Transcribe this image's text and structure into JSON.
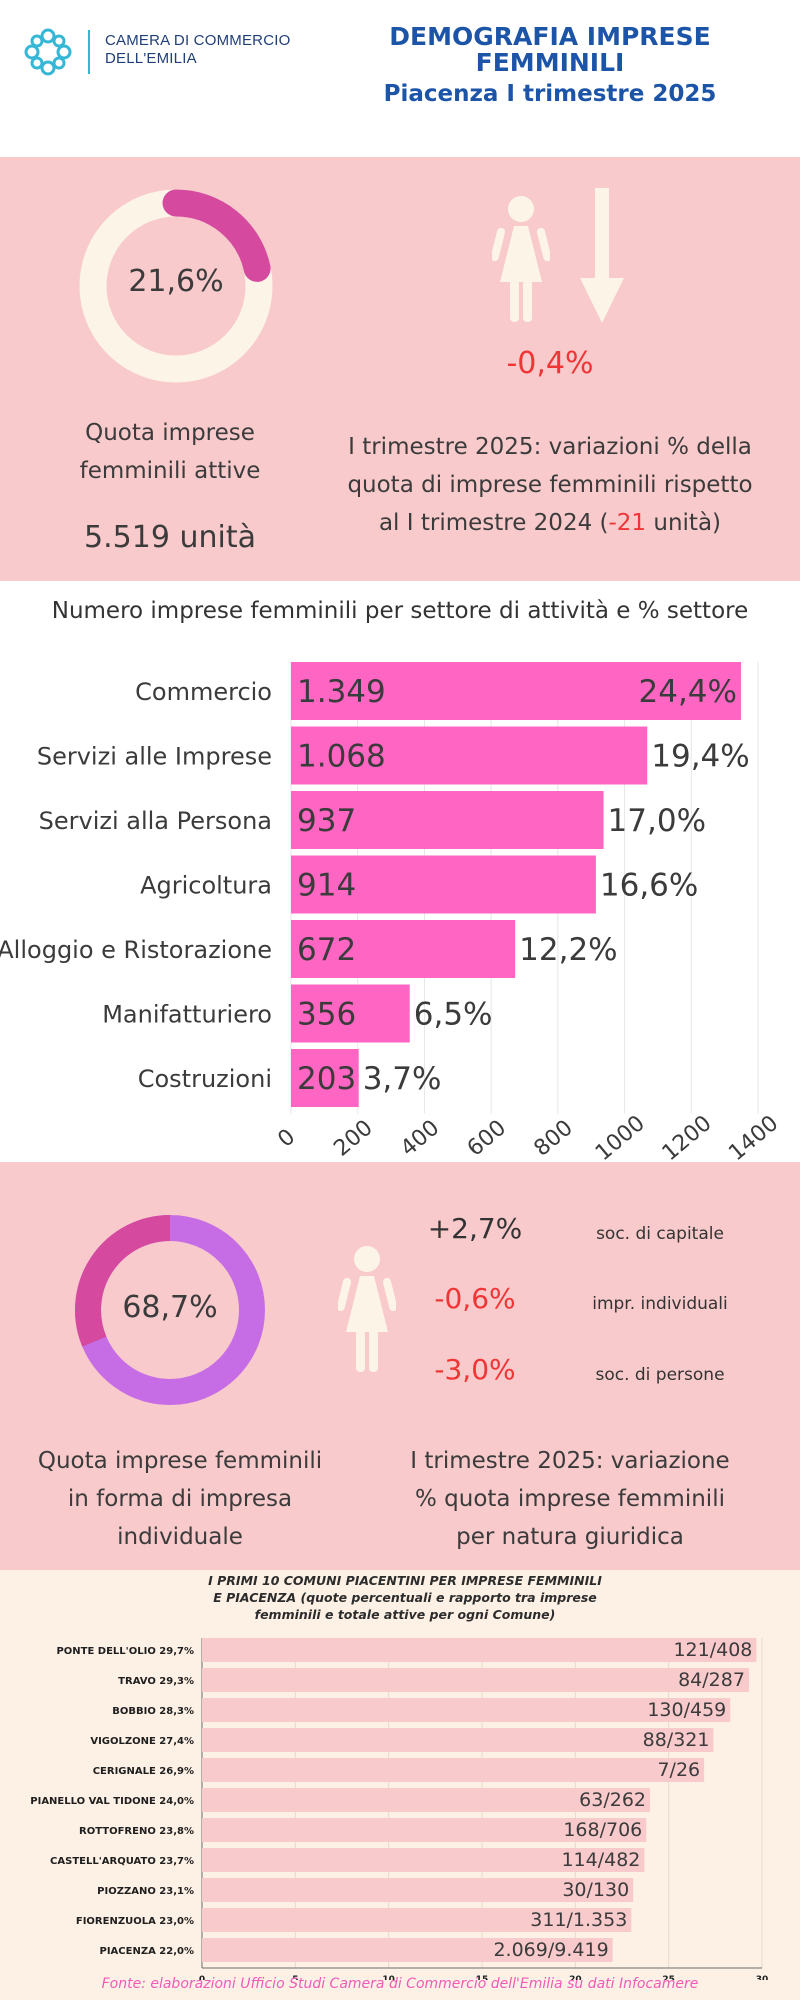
{
  "header": {
    "logo_line1": "CAMERA DI COMMERCIO",
    "logo_line2": "DELL'EMILIA",
    "title_line1": "DEMOGRAFIA IMPRESE",
    "title_line2": "FEMMINILI",
    "subtitle": "Piacenza I trimestre 2025"
  },
  "colors": {
    "title_blue": "#1c54a8",
    "panel_pink": "#f8cacb",
    "bar_magenta": "#ff66c4",
    "donut_magenta": "#d54a9f",
    "donut_violet": "#c66de6",
    "negative_red": "#ef3535",
    "cream": "#fdf4e8"
  },
  "share": {
    "percent_label": "21,6%",
    "percent_value": 21.6,
    "label_line1": "Quota imprese",
    "label_line2": "femminili attive",
    "units": "5.519 unità",
    "icon": "woman-icon",
    "arrow_icon": "arrow-down-icon",
    "variation": "-0,4%",
    "desc_line1": "I trimestre 2025: variazioni % della",
    "desc_line2": "quota di imprese femminili rispetto",
    "desc_line3_pre": "al I trimestre 2024 (",
    "desc_line3_red": "-21",
    "desc_line3_post": " unità)"
  },
  "chart_data": [
    {
      "type": "bar",
      "orientation": "horizontal",
      "title": "Numero imprese femminili per settore di attività e % settore",
      "categories": [
        "Commercio",
        "Servizi alle Imprese",
        "Servizi alla Persona",
        "Agricoltura",
        "Alloggio e Ristorazione",
        "Manifatturiero",
        "Costruzioni"
      ],
      "values": [
        1349,
        1068,
        937,
        914,
        672,
        356,
        203
      ],
      "value_labels": [
        "1.349",
        "1.068",
        "937",
        "914",
        "672",
        "356",
        "203"
      ],
      "percent_labels": [
        "24,4%",
        "19,4%",
        "17,0%",
        "16,6%",
        "12,2%",
        "6,5%",
        "3,7%"
      ],
      "xlim": [
        0,
        1400
      ],
      "xticks": [
        0,
        200,
        400,
        600,
        800,
        1000,
        1200,
        1400
      ],
      "grid": true
    },
    {
      "type": "bar",
      "orientation": "horizontal",
      "title_line1": "I PRIMI 10 COMUNI PIACENTINI PER IMPRESE FEMMINILI",
      "title_line2": "E PIACENZA  (quote percentuali e rapporto tra imprese",
      "title_line3": "femminili e totale attive per ogni Comune)",
      "categories": [
        "PONTE DELL'OLIO 29,7%",
        "TRAVO 29,3%",
        "BOBBIO 28,3%",
        "VIGOLZONE 27,4%",
        "CERIGNALE 26,9%",
        "PIANELLO VAL TIDONE 24,0%",
        "ROTTOFRENO 23,8%",
        "CASTELL'ARQUATO 23,7%",
        "PIOZZANO 23,1%",
        "FIORENZUOLA 23,0%",
        "PIACENZA 22,0%"
      ],
      "values": [
        29.7,
        29.3,
        28.3,
        27.4,
        26.9,
        24.0,
        23.8,
        23.7,
        23.1,
        23.0,
        22.0
      ],
      "value_labels": [
        "121/408",
        "84/287",
        "130/459",
        "88/321",
        "7/26",
        "63/262",
        "168/706",
        "114/482",
        "30/130",
        "311/1.353",
        "2.069/9.419"
      ],
      "xlim": [
        0,
        30
      ],
      "xticks": [
        0,
        5,
        10,
        15,
        20,
        25,
        30
      ]
    }
  ],
  "legal_form": {
    "percent_label": "68,7%",
    "percent_value": 68.7,
    "label_line1": "Quota imprese femminili",
    "label_line2": "in forma di impresa",
    "label_line3": "individuale",
    "icon": "woman-icon",
    "items": [
      {
        "value": "+2,7%",
        "label": "soc. di capitale"
      },
      {
        "value": "-0,6%",
        "label": "impr. individuali"
      },
      {
        "value": "-3,0%",
        "label": "soc. di persone"
      }
    ],
    "desc_line1": "I trimestre 2025: variazione",
    "desc_line2": "% quota imprese femminili",
    "desc_line3": "per natura giuridica"
  },
  "source": "Fonte: elaborazioni Ufficio Studi Camera di Commercio  dell'Emilia su dati Infocamere"
}
